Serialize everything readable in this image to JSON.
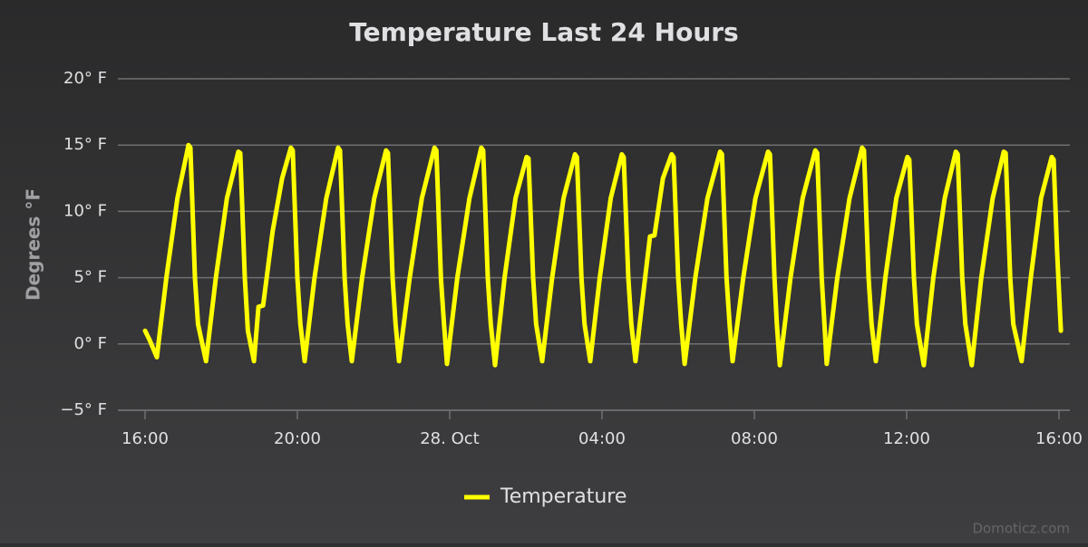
{
  "chart_data": {
    "type": "line",
    "title": "Temperature Last 24 Hours",
    "y_axis_label": "Degrees °F",
    "credit": "Domoticz.com",
    "xlim": [
      -0.714,
      24.286
    ],
    "xticks": [
      {
        "value": 0,
        "label": "16:00"
      },
      {
        "value": 4,
        "label": "20:00"
      },
      {
        "value": 8,
        "label": "28. Oct"
      },
      {
        "value": 12,
        "label": "04:00"
      },
      {
        "value": 16,
        "label": "08:00"
      },
      {
        "value": 20,
        "label": "12:00"
      },
      {
        "value": 24,
        "label": "16:00"
      }
    ],
    "ylim": [
      -5,
      20
    ],
    "yticks": [
      {
        "value": -5,
        "label": "−5° F"
      },
      {
        "value": 0,
        "label": "0° F"
      },
      {
        "value": 5,
        "label": "5° F"
      },
      {
        "value": 10,
        "label": "10° F"
      },
      {
        "value": 15,
        "label": "15° F"
      },
      {
        "value": 20,
        "label": "20° F"
      }
    ],
    "grid": true,
    "legend": "bottom",
    "x": [
      0,
      0.12,
      0.31,
      0.56,
      0.85,
      1.14,
      1.19,
      1.31,
      1.39,
      1.6,
      1.86,
      2.15,
      2.45,
      2.5,
      2.62,
      2.7,
      2.86,
      2.98,
      3.1,
      3.35,
      3.6,
      3.83,
      3.88,
      4.0,
      4.08,
      4.19,
      4.45,
      4.76,
      5.07,
      5.12,
      5.24,
      5.32,
      5.43,
      5.7,
      6.02,
      6.33,
      6.38,
      6.5,
      6.58,
      6.67,
      6.95,
      7.27,
      7.6,
      7.65,
      7.77,
      7.85,
      7.93,
      8.2,
      8.52,
      8.83,
      8.88,
      9.0,
      9.08,
      9.19,
      9.44,
      9.73,
      10.02,
      10.07,
      10.19,
      10.27,
      10.43,
      10.69,
      10.99,
      11.29,
      11.34,
      11.46,
      11.54,
      11.69,
      11.94,
      12.23,
      12.52,
      12.57,
      12.69,
      12.77,
      12.88,
      13.05,
      13.26,
      13.38,
      13.6,
      13.83,
      13.88,
      14.0,
      14.08,
      14.17,
      14.45,
      14.77,
      15.1,
      15.15,
      15.27,
      15.35,
      15.43,
      15.71,
      16.03,
      16.36,
      16.41,
      16.53,
      16.59,
      16.67,
      16.95,
      17.27,
      17.6,
      17.65,
      17.77,
      17.84,
      17.9,
      18.18,
      18.5,
      18.83,
      18.88,
      19.0,
      19.08,
      19.19,
      19.44,
      19.73,
      20.02,
      20.07,
      20.19,
      20.27,
      20.45,
      20.7,
      21.0,
      21.29,
      21.34,
      21.46,
      21.54,
      21.71,
      21.96,
      22.26,
      22.55,
      22.6,
      22.72,
      22.8,
      23.02,
      23.26,
      23.53,
      23.81,
      23.86,
      23.95,
      24.05
    ],
    "series": [
      {
        "name": "Temperature",
        "color": "#ffff00",
        "values": [
          1.0,
          0.3,
          -1.0,
          5,
          11,
          15.0,
          14.8,
          5,
          1.5,
          -1.3,
          5,
          11,
          14.5,
          14.4,
          5,
          1.0,
          -1.3,
          2.8,
          2.9,
          8.5,
          12.5,
          14.8,
          14.6,
          5,
          1.5,
          -1.3,
          5,
          11,
          14.8,
          14.6,
          5,
          1.5,
          -1.3,
          5,
          11,
          14.6,
          14.4,
          5,
          1.5,
          -1.3,
          5,
          11,
          14.8,
          14.6,
          5,
          1.5,
          -1.5,
          5,
          11,
          14.8,
          14.6,
          5,
          1.5,
          -1.6,
          5,
          11,
          14.1,
          14.0,
          5,
          1.5,
          -1.3,
          5,
          11,
          14.3,
          14.1,
          5,
          1.5,
          -1.3,
          5,
          11,
          14.3,
          14.1,
          5,
          1.5,
          -1.3,
          3,
          8.1,
          8.2,
          12.5,
          14.3,
          14.1,
          5,
          1.5,
          -1.5,
          5,
          11,
          14.5,
          14.3,
          5,
          1.5,
          -1.3,
          5,
          11,
          14.5,
          14.3,
          5,
          1.5,
          -1.6,
          5,
          11,
          14.6,
          14.4,
          5,
          1.5,
          -1.5,
          5,
          11,
          14.8,
          14.6,
          5,
          1.5,
          -1.3,
          5,
          11,
          14.1,
          13.9,
          5,
          1.5,
          -1.6,
          5,
          11,
          14.5,
          14.3,
          5,
          1.5,
          -1.6,
          5,
          11,
          14.5,
          14.4,
          5,
          1.5,
          -1.3,
          5,
          11,
          14.1,
          13.9,
          7,
          1.0
        ]
      }
    ]
  }
}
